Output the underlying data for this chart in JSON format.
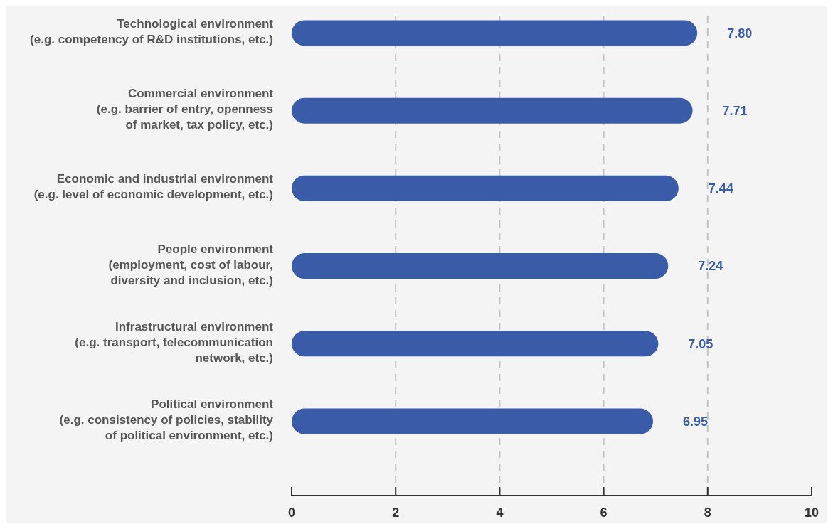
{
  "chart_data": {
    "type": "bar",
    "orientation": "horizontal",
    "categories": [
      "Technological environment\n(e.g. competency of R&D institutions, etc.)",
      "Commercial environment\n(e.g. barrier of entry, openness\nof market, tax policy, etc.)",
      "Economic and industrial environment\n(e.g. level of economic development, etc.)",
      "People environment\n(employment, cost of labour,\ndiversity and inclusion, etc.)",
      "Infrastructural environment\n(e.g. transport, telecommunication\nnetwork, etc.)",
      "Political environment\n(e.g. consistency of policies, stability\nof political environment, etc.)"
    ],
    "values": [
      7.8,
      7.71,
      7.44,
      7.24,
      7.05,
      6.95
    ],
    "value_labels": [
      "7.80",
      "7.71",
      "7.44",
      "7.24",
      "7.05",
      "6.95"
    ],
    "color": "#3a5ba8",
    "xlim": [
      0,
      10
    ],
    "xticks": [
      0,
      2,
      4,
      6,
      8,
      10
    ],
    "grid": "x"
  }
}
